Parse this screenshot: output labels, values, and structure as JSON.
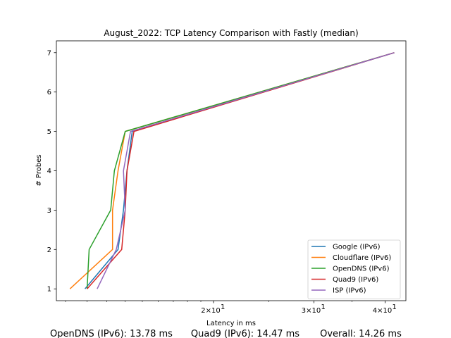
{
  "chart_data": {
    "type": "line",
    "title": "August_2022: TCP Latency Comparison with Fastly (median)",
    "xlabel": "Latency in ms",
    "ylabel": "# Probes",
    "xscale": "log",
    "xlim": [
      10.6,
      43.5
    ],
    "ylim": [
      0.7,
      7.3
    ],
    "xticks": [
      {
        "value": 20,
        "label": "2×10"
      },
      {
        "value": 30,
        "label": "3×10"
      },
      {
        "value": 40,
        "label": "4×10"
      }
    ],
    "xtick_exponent": "1",
    "yticks": [
      1,
      2,
      3,
      4,
      5,
      6,
      7
    ],
    "legend": "lower-right",
    "grid": false,
    "series": [
      {
        "name": "Google (IPv6)",
        "color": "#1f77b4",
        "x": [
          11.9,
          13.6,
          13.9,
          14.1,
          14.4,
          41.5
        ],
        "y": [
          1,
          2,
          3,
          4,
          5,
          7
        ]
      },
      {
        "name": "Cloudflare (IPv6)",
        "color": "#ff7f0e",
        "x": [
          11.2,
          13.3,
          13.3,
          13.6,
          14.0,
          41.5
        ],
        "y": [
          1,
          2,
          3,
          4,
          5,
          7
        ]
      },
      {
        "name": "OpenDNS (IPv6)",
        "color": "#2ca02c",
        "x": [
          12.0,
          12.1,
          13.2,
          13.4,
          14.0,
          41.5
        ],
        "y": [
          1,
          2,
          3,
          4,
          5,
          7
        ]
      },
      {
        "name": "Quad9 (IPv6)",
        "color": "#d62728",
        "x": [
          12.0,
          13.8,
          14.0,
          14.1,
          14.5,
          41.5
        ],
        "y": [
          1,
          2,
          3,
          4,
          5,
          7
        ]
      },
      {
        "name": "ISP (IPv6)",
        "color": "#9467bd",
        "x": [
          12.5,
          13.5,
          14.0,
          13.9,
          14.3,
          41.5
        ],
        "y": [
          1,
          2,
          3,
          4,
          5,
          7
        ]
      }
    ]
  },
  "footer": {
    "items": [
      "OpenDNS (IPv6): 13.78 ms",
      "Quad9 (IPv6): 14.47 ms",
      "Overall: 14.26 ms"
    ]
  }
}
